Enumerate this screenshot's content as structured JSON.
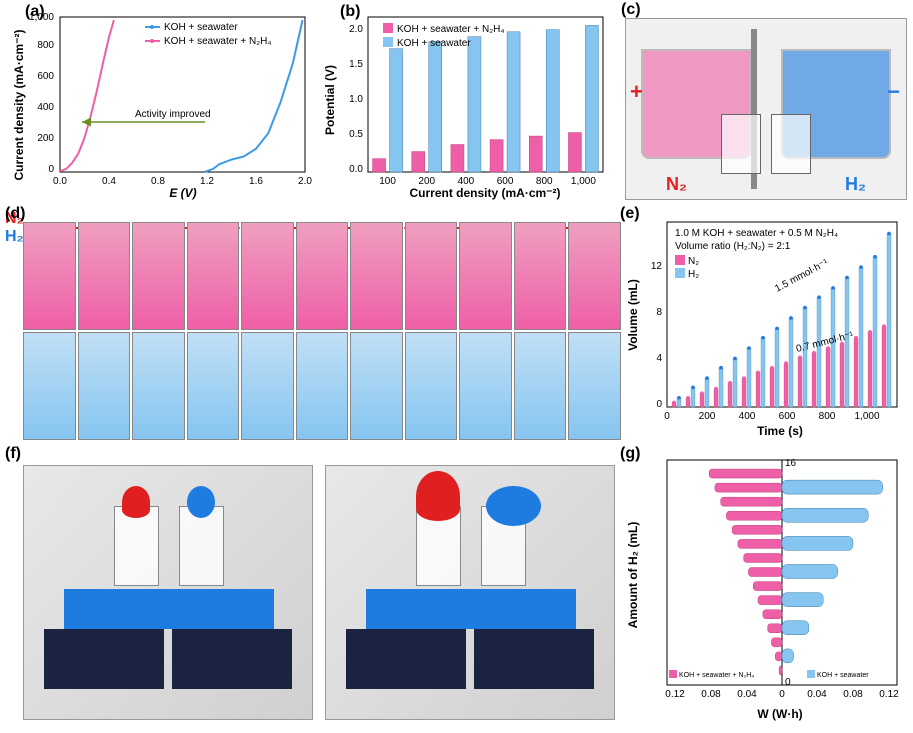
{
  "panel_a": {
    "label": "(a)",
    "type": "line",
    "x_label": "E (V)",
    "y_label": "Current density (mA·cm⁻²)",
    "xlim": [
      0,
      2.0
    ],
    "ylim": [
      0,
      1000
    ],
    "xtick_step": 0.4,
    "ytick_step": 200,
    "background_color": "#ffffff",
    "series": [
      {
        "name": "KOH + seawater",
        "color": "#3b9be8",
        "points": [
          [
            1.18,
            0
          ],
          [
            1.25,
            20
          ],
          [
            1.3,
            50
          ],
          [
            1.4,
            80
          ],
          [
            1.5,
            100
          ],
          [
            1.6,
            150
          ],
          [
            1.7,
            250
          ],
          [
            1.8,
            450
          ],
          [
            1.9,
            700
          ],
          [
            1.98,
            980
          ]
        ]
      },
      {
        "name": "KOH + seawater + N₂H₄",
        "color": "#ef5fa7",
        "points": [
          [
            0,
            5
          ],
          [
            0.05,
            20
          ],
          [
            0.1,
            60
          ],
          [
            0.15,
            120
          ],
          [
            0.2,
            220
          ],
          [
            0.25,
            360
          ],
          [
            0.3,
            520
          ],
          [
            0.35,
            700
          ],
          [
            0.4,
            870
          ],
          [
            0.44,
            980
          ]
        ]
      }
    ],
    "annotation": {
      "text": "Activity improved",
      "color": "#6b8e23",
      "arrow_from_x": 1.2,
      "arrow_to_x": 0.15,
      "y": 320
    }
  },
  "panel_b": {
    "label": "(b)",
    "type": "bar",
    "x_label": "Current density (mA·cm⁻²)",
    "y_label": "Potential (V)",
    "categories": [
      "100",
      "200",
      "400",
      "600",
      "800",
      "1,000"
    ],
    "ylim": [
      0,
      2.2
    ],
    "ytick_step": 0.5,
    "background_color": "#ffffff",
    "series": [
      {
        "name": "KOH + seawater + N₂H₄",
        "color": "#ef5fa7",
        "values": [
          0.19,
          0.29,
          0.39,
          0.46,
          0.51,
          0.56
        ]
      },
      {
        "name": "KOH + seawater",
        "color": "#86c5f0",
        "values": [
          1.75,
          1.85,
          1.92,
          1.99,
          2.02,
          2.08
        ]
      }
    ],
    "bar_width": 0.35
  },
  "panel_c": {
    "label": "(c)",
    "type": "photo",
    "overlays": [
      {
        "text": "+",
        "color": "#e02020",
        "side": "left"
      },
      {
        "text": "N₂",
        "color": "#e02020",
        "side": "left-bottom"
      },
      {
        "text": "−",
        "color": "#1e7be0",
        "side": "right"
      },
      {
        "text": "H₂",
        "color": "#1e7be0",
        "side": "right-bottom"
      }
    ],
    "liquid_colors": {
      "left": "#ef5fa7",
      "right": "#1e7be0"
    }
  },
  "panel_d": {
    "label": "(d)",
    "type": "photo-sequence",
    "rows": 2,
    "row_labels": [
      {
        "text": "N₂",
        "color": "#e02020"
      },
      {
        "text": "H₂",
        "color": "#1e7be0"
      }
    ],
    "frames": 11
  },
  "panel_e": {
    "label": "(e)",
    "type": "bar-line",
    "x_label": "Time (s)",
    "y_label": "Volume (mL)",
    "annotation_top": "1.0 M KOH + seawater + 0.5 M N₂H₄",
    "annotation_ratio": "Volume ratio (H₂:N₂) = 2:1",
    "rate_h2": "1.5 mmol·h⁻¹",
    "rate_n2": "0.7 mmol·h⁻¹",
    "xlim": [
      0,
      1150
    ],
    "ylim": [
      0,
      16
    ],
    "xtick_step": 200,
    "ytick_step": 4,
    "series": [
      {
        "name": "N₂",
        "color": "#ef5fa7",
        "times": [
          50,
          120,
          190,
          260,
          330,
          400,
          470,
          540,
          610,
          680,
          750,
          820,
          890,
          960,
          1030,
          1100
        ],
        "values": [
          0.4,
          0.8,
          1.2,
          1.6,
          2.1,
          2.5,
          3.0,
          3.4,
          3.8,
          4.3,
          4.7,
          5.1,
          5.5,
          6.0,
          6.5,
          7.0
        ]
      },
      {
        "name": "H₂",
        "color": "#86c5f0",
        "marker_color": "#1e7be0",
        "times": [
          50,
          120,
          190,
          260,
          330,
          400,
          470,
          540,
          610,
          680,
          750,
          820,
          890,
          960,
          1030,
          1100
        ],
        "values": [
          0.8,
          1.7,
          2.5,
          3.4,
          4.2,
          5.1,
          6.0,
          6.8,
          7.7,
          8.6,
          9.5,
          10.3,
          11.2,
          12.1,
          13.0,
          15.0
        ]
      }
    ]
  },
  "panel_f": {
    "label": "(f)",
    "type": "photo",
    "subpanels": 2
  },
  "panel_g": {
    "label": "(g)",
    "type": "horizontal-bar-mirror",
    "x_label": "W (W·h)",
    "y_label": "Amount of H₂ (mL)",
    "ylim": [
      0,
      16
    ],
    "ytick_step": 2,
    "xlim": [
      0,
      0.12
    ],
    "xtick_step": 0.04,
    "series_left": {
      "name": "KOH + seawater + N₂H₄",
      "color": "#ef5fa7",
      "values_y": [
        1,
        2,
        3,
        4,
        5,
        6,
        7,
        8,
        9,
        10,
        11,
        12,
        13,
        14,
        15
      ],
      "values_x": [
        0.003,
        0.007,
        0.011,
        0.015,
        0.02,
        0.025,
        0.03,
        0.035,
        0.04,
        0.046,
        0.052,
        0.058,
        0.064,
        0.07,
        0.076
      ]
    },
    "series_right": {
      "name": "KOH + seawater",
      "color": "#86c5f0",
      "values_y": [
        2,
        4,
        6,
        8,
        10,
        12,
        14
      ],
      "values_x": [
        0.012,
        0.028,
        0.043,
        0.058,
        0.074,
        0.09,
        0.105
      ]
    }
  }
}
